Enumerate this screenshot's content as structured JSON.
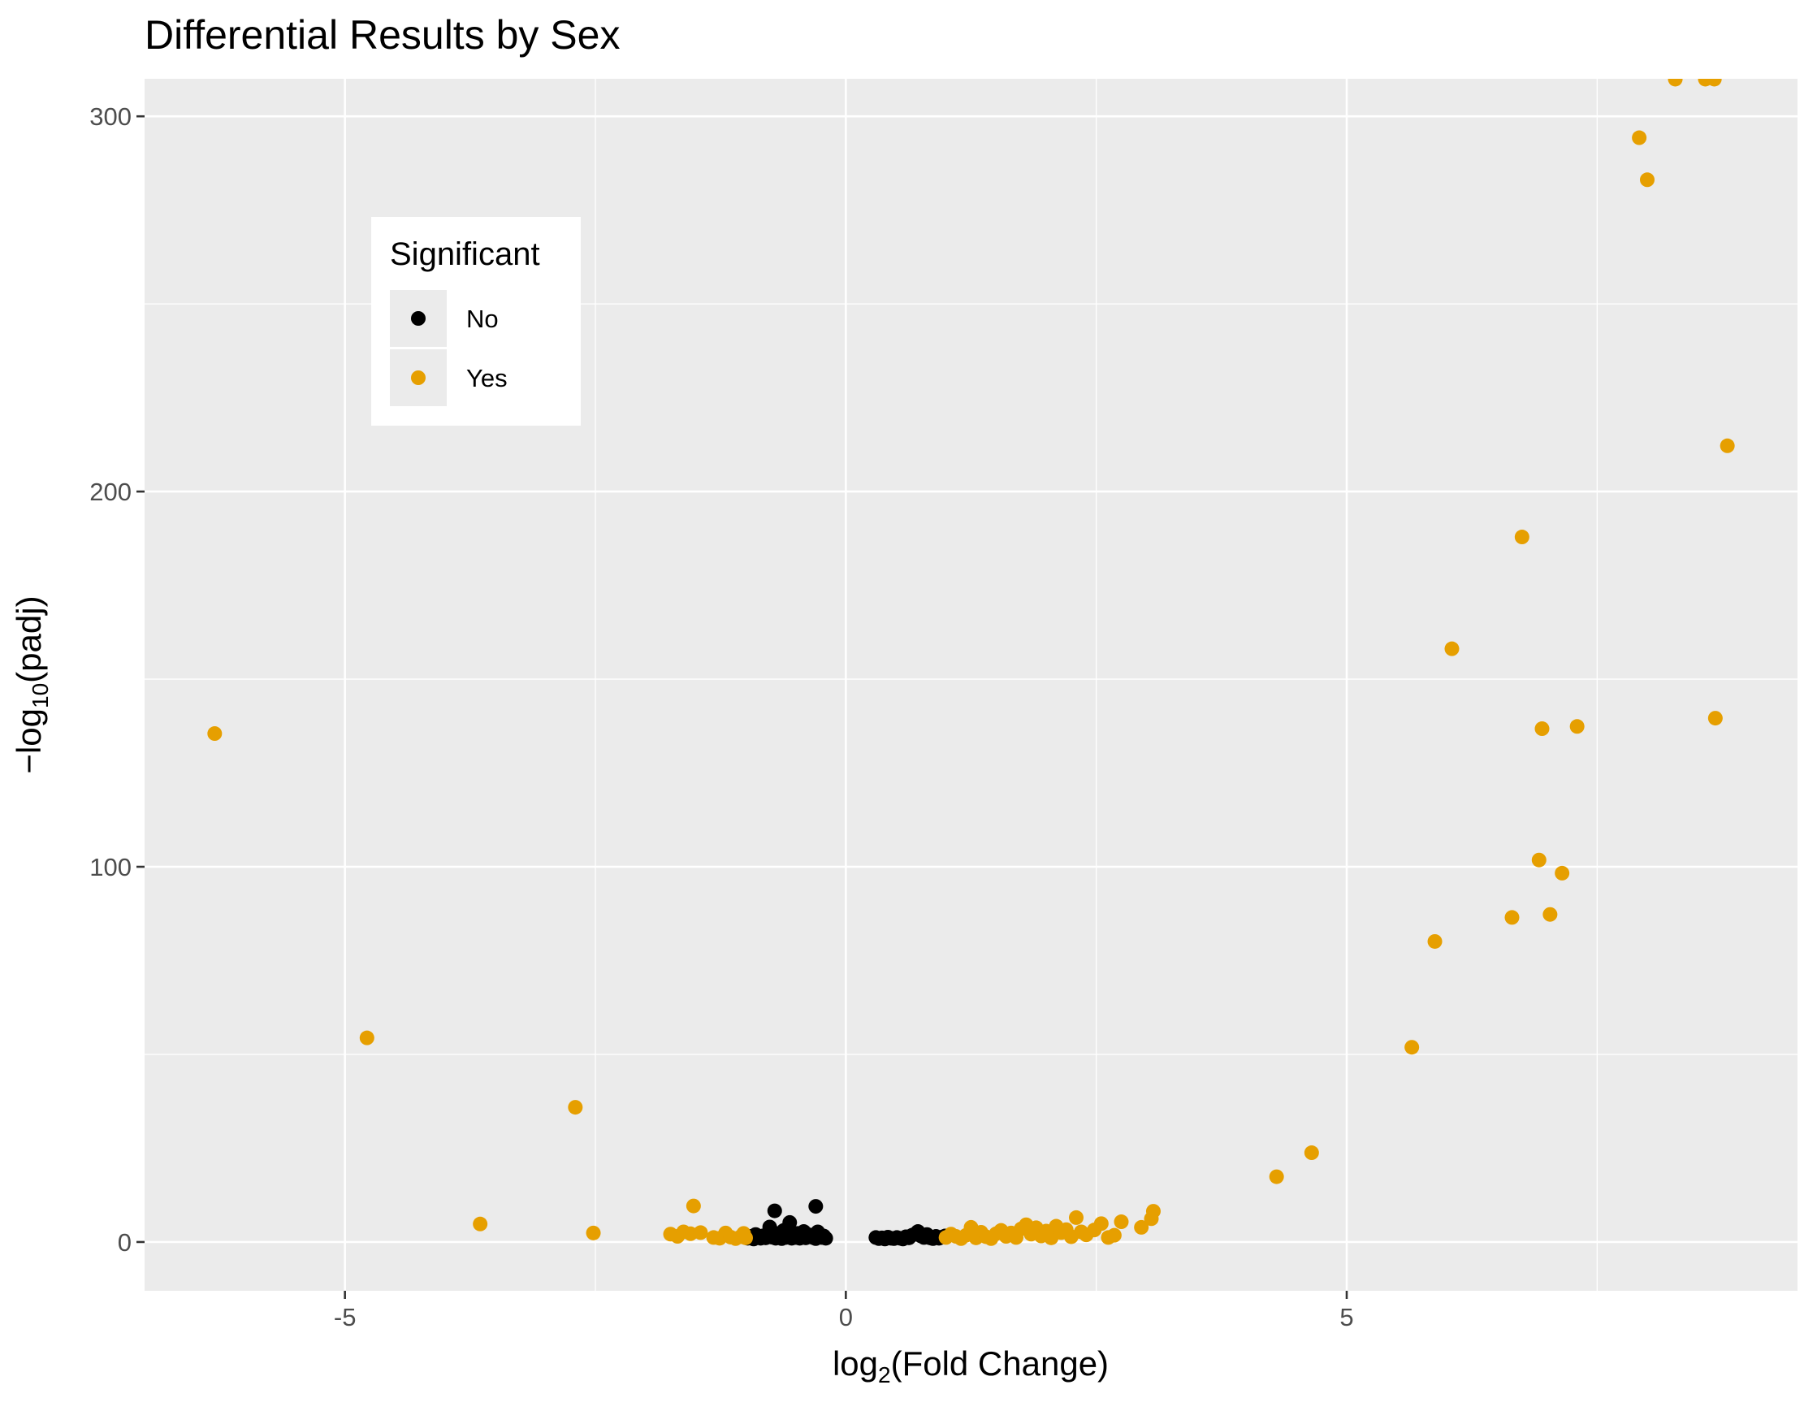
{
  "chart_data": {
    "type": "scatter",
    "title": "Differential Results by Sex",
    "xlabel": "log₂(Fold Change)",
    "xlabel_main": "log",
    "xlabel_sub": "2",
    "xlabel_rest": "(Fold Change)",
    "ylabel": "−log₁₀(padj)",
    "ylabel_main": "−log",
    "ylabel_sub": "10",
    "ylabel_rest": "(padj)",
    "xlim": [
      -7,
      9.5
    ],
    "ylim": [
      -13,
      310
    ],
    "x_ticks": [
      -5,
      0,
      5
    ],
    "x_tick_labels": [
      "-5",
      "0",
      "5"
    ],
    "y_ticks": [
      0,
      100,
      200,
      300
    ],
    "y_tick_labels": [
      "0",
      "100",
      "200",
      "300"
    ],
    "grid": true,
    "legend": {
      "title": "Significant",
      "position": "inside-top-left",
      "entries": [
        "No",
        "Yes"
      ]
    },
    "colors": {
      "No": "#000000",
      "Yes": "#E69F00",
      "panel": "#EBEBEB"
    },
    "series": [
      {
        "name": "No",
        "points": [
          [
            -0.98,
            1
          ],
          [
            -0.95,
            1.5
          ],
          [
            -0.92,
            0.8
          ],
          [
            -0.9,
            2
          ],
          [
            -0.88,
            1.2
          ],
          [
            -0.85,
            1
          ],
          [
            -0.83,
            1.6
          ],
          [
            -0.8,
            1.1
          ],
          [
            -0.78,
            2.2
          ],
          [
            -0.76,
            4
          ],
          [
            -0.74,
            1.3
          ],
          [
            -0.72,
            2.5
          ],
          [
            -0.7,
            1
          ],
          [
            -0.68,
            1.6
          ],
          [
            -0.66,
            2.1
          ],
          [
            -0.64,
            0.9
          ],
          [
            -0.62,
            3.1
          ],
          [
            -0.6,
            1.2
          ],
          [
            -0.58,
            2.4
          ],
          [
            -0.56,
            5.2
          ],
          [
            -0.54,
            1
          ],
          [
            -0.52,
            1.8
          ],
          [
            -0.5,
            1.2
          ],
          [
            -0.48,
            2.3
          ],
          [
            -0.46,
            1
          ],
          [
            -0.44,
            1.5
          ],
          [
            -0.42,
            2.8
          ],
          [
            -0.4,
            1.1
          ],
          [
            -0.38,
            2
          ],
          [
            -0.36,
            1.4
          ],
          [
            -0.34,
            1.8
          ],
          [
            -0.32,
            1.1
          ],
          [
            -0.3,
            0.9
          ],
          [
            -0.28,
            2.7
          ],
          [
            -0.26,
            1.9
          ],
          [
            -0.24,
            1.2
          ],
          [
            -0.22,
            1.6
          ],
          [
            -0.2,
            1
          ],
          [
            -0.3,
            9.5
          ],
          [
            -0.71,
            8.3
          ],
          [
            0.3,
            1.2
          ],
          [
            0.33,
            0.9
          ],
          [
            0.36,
            1.1
          ],
          [
            0.39,
            0.8
          ],
          [
            0.42,
            1.3
          ],
          [
            0.45,
            1
          ],
          [
            0.48,
            0.9
          ],
          [
            0.51,
            1.2
          ],
          [
            0.54,
            1
          ],
          [
            0.57,
            0.8
          ],
          [
            0.6,
            1.4
          ],
          [
            0.63,
            1.1
          ],
          [
            0.66,
            1.8
          ],
          [
            0.69,
            2.1
          ],
          [
            0.72,
            2.8
          ],
          [
            0.75,
            1.6
          ],
          [
            0.78,
            1.2
          ],
          [
            0.81,
            2
          ],
          [
            0.84,
            1.1
          ],
          [
            0.87,
            0.9
          ],
          [
            0.9,
            1.5
          ],
          [
            0.93,
            1
          ],
          [
            0.96,
            1.3
          ],
          [
            0.99,
            1.6
          ]
        ]
      },
      {
        "name": "Yes",
        "points": [
          [
            -6.3,
            135.5
          ],
          [
            -4.78,
            54.4
          ],
          [
            -3.65,
            4.8
          ],
          [
            -2.7,
            35.9
          ],
          [
            -2.52,
            2.4
          ],
          [
            -1.75,
            2.1
          ],
          [
            -1.68,
            1.5
          ],
          [
            -1.62,
            2.7
          ],
          [
            -1.55,
            2.2
          ],
          [
            -1.52,
            9.6
          ],
          [
            -1.45,
            2.5
          ],
          [
            -1.32,
            1.2
          ],
          [
            -1.26,
            1
          ],
          [
            -1.2,
            2.4
          ],
          [
            -1.15,
            1.3
          ],
          [
            -1.1,
            0.9
          ],
          [
            -1.05,
            1.4
          ],
          [
            -1.02,
            2.3
          ],
          [
            -1.0,
            1.1
          ],
          [
            1.0,
            1.2
          ],
          [
            1.05,
            2.1
          ],
          [
            1.1,
            1.5
          ],
          [
            1.15,
            0.9
          ],
          [
            1.2,
            1.8
          ],
          [
            1.25,
            3.9
          ],
          [
            1.3,
            1.1
          ],
          [
            1.35,
            2.6
          ],
          [
            1.4,
            1.4
          ],
          [
            1.45,
            0.9
          ],
          [
            1.5,
            2.2
          ],
          [
            1.55,
            3.1
          ],
          [
            1.6,
            1.5
          ],
          [
            1.65,
            2.4
          ],
          [
            1.7,
            1.2
          ],
          [
            1.75,
            3.5
          ],
          [
            1.8,
            4.6
          ],
          [
            1.85,
            2.1
          ],
          [
            1.9,
            3.8
          ],
          [
            1.95,
            1.6
          ],
          [
            2.0,
            2.9
          ],
          [
            2.05,
            1.1
          ],
          [
            2.1,
            4.2
          ],
          [
            2.15,
            2.5
          ],
          [
            2.2,
            3.3
          ],
          [
            2.25,
            1.4
          ],
          [
            2.3,
            6.5
          ],
          [
            2.35,
            2.7
          ],
          [
            2.4,
            1.9
          ],
          [
            2.48,
            3.2
          ],
          [
            2.55,
            4.9
          ],
          [
            2.62,
            1.2
          ],
          [
            2.68,
            1.8
          ],
          [
            2.75,
            5.4
          ],
          [
            2.95,
            3.9
          ],
          [
            3.05,
            6.2
          ],
          [
            3.07,
            8.2
          ],
          [
            4.3,
            17.4
          ],
          [
            4.65,
            23.8
          ],
          [
            5.65,
            51.9
          ],
          [
            5.88,
            80.1
          ],
          [
            6.05,
            158.1
          ],
          [
            6.65,
            86.5
          ],
          [
            6.75,
            187.9
          ],
          [
            6.92,
            101.8
          ],
          [
            6.95,
            136.8
          ],
          [
            7.03,
            87.3
          ],
          [
            7.15,
            98.3
          ],
          [
            7.3,
            137.4
          ],
          [
            7.92,
            294.3
          ],
          [
            8.0,
            283.1
          ],
          [
            8.28,
            309.9
          ],
          [
            8.58,
            309.9
          ],
          [
            8.67,
            309.9
          ],
          [
            8.68,
            139.6
          ],
          [
            8.8,
            212.2
          ]
        ]
      }
    ]
  }
}
